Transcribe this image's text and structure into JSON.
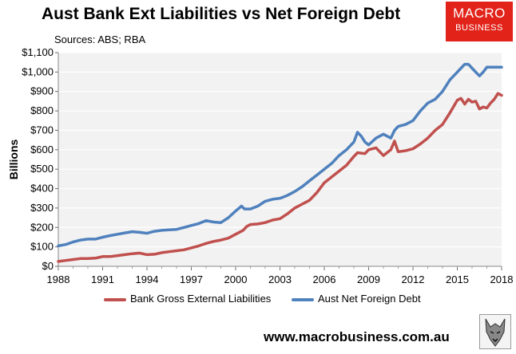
{
  "header": {
    "title": "Aust Bank Ext Liabilities vs Net Foreign Debt",
    "sources": "Sources: ABS; RBA"
  },
  "logo": {
    "line1": "MACRO",
    "line2": "BUSINESS",
    "color": "#e2231a"
  },
  "footer": {
    "url": "www.macrobusiness.com.au"
  },
  "chart_data": {
    "type": "line",
    "title": "Aust Bank Ext Liabilities vs Net Foreign Debt",
    "ylabel": "Billions",
    "xlabel": "",
    "xlim": [
      1988,
      2018
    ],
    "ylim": [
      0,
      1100
    ],
    "x_ticks": [
      "1988",
      "1991",
      "1994",
      "1997",
      "2000",
      "2003",
      "2006",
      "2009",
      "2012",
      "2015",
      "2018"
    ],
    "y_ticks": [
      "$0",
      "$100",
      "$200",
      "$300",
      "$400",
      "$500",
      "$600",
      "$700",
      "$800",
      "$900",
      "$1,000",
      "$1,100"
    ],
    "grid": true,
    "legend_position": "bottom",
    "series": [
      {
        "name": "Bank Gross External Liabilities",
        "color": "#c0504d",
        "points": [
          [
            1988.0,
            25
          ],
          [
            1988.5,
            30
          ],
          [
            1989.0,
            35
          ],
          [
            1989.5,
            40
          ],
          [
            1990.0,
            40
          ],
          [
            1990.5,
            42
          ],
          [
            1991.0,
            50
          ],
          [
            1991.5,
            50
          ],
          [
            1992.0,
            55
          ],
          [
            1992.5,
            60
          ],
          [
            1993.0,
            65
          ],
          [
            1993.5,
            68
          ],
          [
            1994.0,
            60
          ],
          [
            1994.5,
            62
          ],
          [
            1995.0,
            70
          ],
          [
            1995.5,
            75
          ],
          [
            1996.0,
            80
          ],
          [
            1996.5,
            85
          ],
          [
            1997.0,
            95
          ],
          [
            1997.5,
            105
          ],
          [
            1998.0,
            118
          ],
          [
            1998.5,
            128
          ],
          [
            1999.0,
            135
          ],
          [
            1999.5,
            145
          ],
          [
            2000.0,
            165
          ],
          [
            2000.5,
            185
          ],
          [
            2000.75,
            205
          ],
          [
            2001.0,
            215
          ],
          [
            2001.5,
            218
          ],
          [
            2002.0,
            225
          ],
          [
            2002.5,
            238
          ],
          [
            2003.0,
            245
          ],
          [
            2003.5,
            270
          ],
          [
            2004.0,
            300
          ],
          [
            2004.5,
            320
          ],
          [
            2005.0,
            340
          ],
          [
            2005.5,
            380
          ],
          [
            2006.0,
            430
          ],
          [
            2006.5,
            460
          ],
          [
            2007.0,
            490
          ],
          [
            2007.5,
            520
          ],
          [
            2008.0,
            565
          ],
          [
            2008.25,
            585
          ],
          [
            2008.75,
            580
          ],
          [
            2009.0,
            600
          ],
          [
            2009.5,
            610
          ],
          [
            2010.0,
            570
          ],
          [
            2010.5,
            600
          ],
          [
            2010.75,
            645
          ],
          [
            2011.0,
            590
          ],
          [
            2011.5,
            595
          ],
          [
            2012.0,
            605
          ],
          [
            2012.5,
            630
          ],
          [
            2013.0,
            660
          ],
          [
            2013.5,
            700
          ],
          [
            2014.0,
            730
          ],
          [
            2014.5,
            790
          ],
          [
            2015.0,
            855
          ],
          [
            2015.25,
            865
          ],
          [
            2015.5,
            835
          ],
          [
            2015.75,
            860
          ],
          [
            2016.0,
            845
          ],
          [
            2016.25,
            850
          ],
          [
            2016.5,
            810
          ],
          [
            2016.75,
            820
          ],
          [
            2017.0,
            815
          ],
          [
            2017.25,
            840
          ],
          [
            2017.5,
            860
          ],
          [
            2017.75,
            890
          ],
          [
            2018.0,
            880
          ]
        ]
      },
      {
        "name": "Aust Net Foreign Debt",
        "color": "#4f81bd",
        "points": [
          [
            1988.0,
            105
          ],
          [
            1988.5,
            112
          ],
          [
            1989.0,
            125
          ],
          [
            1989.5,
            135
          ],
          [
            1990.0,
            140
          ],
          [
            1990.5,
            140
          ],
          [
            1991.0,
            150
          ],
          [
            1991.5,
            158
          ],
          [
            1992.0,
            165
          ],
          [
            1992.5,
            172
          ],
          [
            1993.0,
            178
          ],
          [
            1993.5,
            175
          ],
          [
            1994.0,
            170
          ],
          [
            1994.5,
            180
          ],
          [
            1995.0,
            185
          ],
          [
            1995.5,
            188
          ],
          [
            1996.0,
            190
          ],
          [
            1996.5,
            200
          ],
          [
            1997.0,
            210
          ],
          [
            1997.5,
            220
          ],
          [
            1998.0,
            235
          ],
          [
            1998.5,
            228
          ],
          [
            1999.0,
            225
          ],
          [
            1999.5,
            250
          ],
          [
            2000.0,
            285
          ],
          [
            2000.4,
            310
          ],
          [
            2000.6,
            295
          ],
          [
            2001.0,
            295
          ],
          [
            2001.5,
            310
          ],
          [
            2002.0,
            335
          ],
          [
            2002.5,
            345
          ],
          [
            2003.0,
            350
          ],
          [
            2003.5,
            365
          ],
          [
            2004.0,
            385
          ],
          [
            2004.5,
            410
          ],
          [
            2005.0,
            440
          ],
          [
            2005.5,
            470
          ],
          [
            2006.0,
            500
          ],
          [
            2006.5,
            530
          ],
          [
            2007.0,
            570
          ],
          [
            2007.5,
            600
          ],
          [
            2008.0,
            640
          ],
          [
            2008.25,
            690
          ],
          [
            2008.5,
            670
          ],
          [
            2008.75,
            640
          ],
          [
            2009.0,
            625
          ],
          [
            2009.5,
            660
          ],
          [
            2010.0,
            680
          ],
          [
            2010.5,
            660
          ],
          [
            2010.75,
            700
          ],
          [
            2011.0,
            720
          ],
          [
            2011.5,
            730
          ],
          [
            2012.0,
            750
          ],
          [
            2012.5,
            800
          ],
          [
            2013.0,
            840
          ],
          [
            2013.5,
            860
          ],
          [
            2014.0,
            900
          ],
          [
            2014.5,
            960
          ],
          [
            2015.0,
            1000
          ],
          [
            2015.25,
            1020
          ],
          [
            2015.5,
            1040
          ],
          [
            2015.75,
            1040
          ],
          [
            2016.0,
            1020
          ],
          [
            2016.25,
            1000
          ],
          [
            2016.5,
            980
          ],
          [
            2016.75,
            1000
          ],
          [
            2017.0,
            1025
          ],
          [
            2017.5,
            1025
          ],
          [
            2018.0,
            1025
          ]
        ]
      }
    ]
  }
}
